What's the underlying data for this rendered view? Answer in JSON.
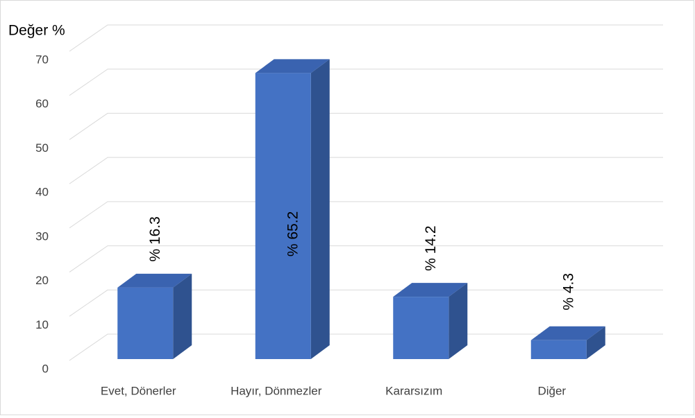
{
  "chart_data": {
    "type": "bar3d",
    "y_axis_label": "Değer %",
    "categories": [
      "Evet, Dönerler",
      "Hayır, Dönmezler",
      "Kararsızım",
      "Diğer"
    ],
    "values": [
      16.3,
      65.2,
      14.2,
      4.3
    ],
    "value_labels": [
      "% 16.3",
      "% 65.2",
      "% 14.2",
      "% 4.3"
    ],
    "color": "#4472c4",
    "side_color": "#2f528f",
    "top_color": "#3a63b0",
    "ylim": [
      0,
      70
    ],
    "yticks": [
      0,
      10,
      20,
      30,
      40,
      50,
      60,
      70
    ],
    "grid": true
  }
}
